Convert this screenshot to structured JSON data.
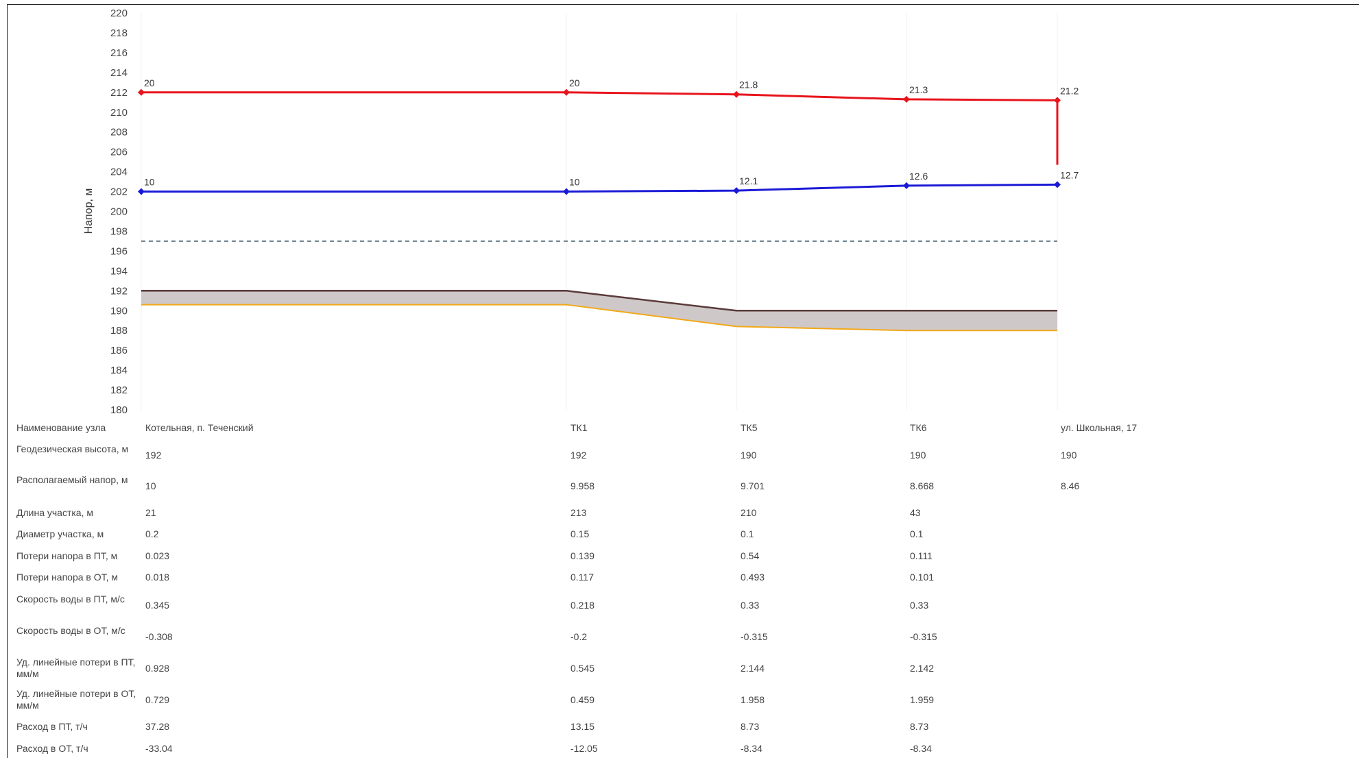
{
  "chart_data": {
    "type": "line",
    "title": "",
    "ylabel": "Напор, м",
    "ylim": [
      180,
      220
    ],
    "y_ticks": [
      "180",
      "182",
      "184",
      "186",
      "188",
      "190",
      "192",
      "194",
      "196",
      "198",
      "200",
      "202",
      "204",
      "206",
      "208",
      "210",
      "212",
      "214",
      "216",
      "218",
      "220"
    ],
    "nodes": [
      "Котельная, п. Теченский",
      "ТК1",
      "ТК5",
      "ТК6",
      "ул. Школьная, 17"
    ],
    "series": [
      {
        "values": [
          212,
          212,
          211.8,
          211.3,
          211.2
        ],
        "labels": [
          "20",
          "20",
          "21.8",
          "21.3",
          "21.2"
        ],
        "color": "#e8141c"
      },
      {
        "values": [
          202,
          202,
          202.1,
          202.6,
          202.7
        ],
        "labels": [
          "10",
          "10",
          "12.1",
          "12.6",
          "12.7"
        ],
        "color": "#1a1ad6"
      }
    ],
    "drop_line": {
      "from": 211.2,
      "to": 204.7,
      "color": "#e8141c"
    },
    "reference_dashed": {
      "value": 197,
      "color": "#2d4a5e"
    },
    "ground_top": [
      192,
      192,
      190,
      190,
      190
    ],
    "ground_bottom": [
      190.6,
      190.6,
      188.4,
      188.0,
      188.0
    ],
    "ground_colors": {
      "top": "#5a3a3a",
      "fill": "#cfc8c8",
      "bottom": "#f2a818"
    }
  },
  "table": {
    "rows": [
      {
        "label": "Наименование узла",
        "values": [
          "Котельная, п. Теченский",
          "ТК1",
          "ТК5",
          "ТК6",
          "ул. Школьная, 17"
        ]
      },
      {
        "label": "Геодезическая высота, м",
        "values": [
          "192",
          "192",
          "190",
          "190",
          "190"
        ]
      },
      {
        "label": "Располагаемый напор, м",
        "values": [
          "10",
          "9.958",
          "9.701",
          "8.668",
          "8.46"
        ]
      },
      {
        "label": "Длина участка, м",
        "values": [
          "21",
          "213",
          "210",
          "43",
          ""
        ]
      },
      {
        "label": "Диаметр участка, м",
        "values": [
          "0.2",
          "0.15",
          "0.1",
          "0.1",
          ""
        ]
      },
      {
        "label": "Потери напора в ПТ, м",
        "values": [
          "0.023",
          "0.139",
          "0.54",
          "0.111",
          ""
        ]
      },
      {
        "label": "Потери напора в ОТ, м",
        "values": [
          "0.018",
          "0.117",
          "0.493",
          "0.101",
          ""
        ]
      },
      {
        "label": "Скорость воды в ПТ, м/с",
        "values": [
          "0.345",
          "0.218",
          "0.33",
          "0.33",
          ""
        ]
      },
      {
        "label": "Скорость воды в ОТ, м/с",
        "values": [
          "-0.308",
          "-0.2",
          "-0.315",
          "-0.315",
          ""
        ]
      },
      {
        "label": "Уд. линейные потери в ПТ, мм/м",
        "values": [
          "0.928",
          "0.545",
          "2.144",
          "2.142",
          ""
        ]
      },
      {
        "label": "Уд. линейные потери в ОТ, мм/м",
        "values": [
          "0.729",
          "0.459",
          "1.958",
          "1.959",
          ""
        ]
      },
      {
        "label": "Расход в ПТ, т/ч",
        "values": [
          "37.28",
          "13.15",
          "8.73",
          "8.73",
          ""
        ]
      },
      {
        "label": "Расход в ОТ, т/ч",
        "values": [
          "-33.04",
          "-12.05",
          "-8.34",
          "-8.34",
          ""
        ]
      }
    ]
  }
}
